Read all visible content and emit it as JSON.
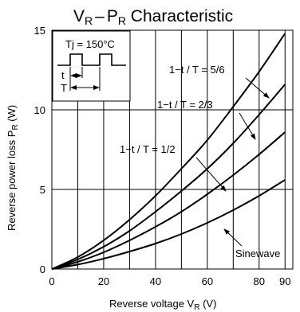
{
  "title": {
    "a": "V",
    "a_sub": "R",
    "dash": "–",
    "b": "P",
    "b_sub": "R",
    "rest": " Characteristic"
  },
  "xlabel": {
    "text": "Reverse voltage  V",
    "sub": "R",
    "unit": " (V)"
  },
  "ylabel": {
    "text": "Reverse power loss  P",
    "sub": "R",
    "unit": " (W)"
  },
  "inset": {
    "tj_label": "Tj = 150°C",
    "t_label": "t",
    "T_label": "T"
  },
  "chart_data": {
    "type": "line",
    "title": "VR – PR Characteristic",
    "xlabel": "Reverse voltage VR (V)",
    "ylabel": "Reverse power loss PR (W)",
    "xlim": [
      0,
      93
    ],
    "ylim": [
      0,
      15
    ],
    "x_ticks": [
      "0",
      "20",
      "40",
      "60",
      "80",
      "90"
    ],
    "y_ticks": [
      "0",
      "5",
      "10",
      "15"
    ],
    "grid": true,
    "series": [
      {
        "name": "1−t / T = 5/6",
        "x": [
          0,
          10,
          20,
          30,
          40,
          50,
          60,
          70,
          80,
          90
        ],
        "y": [
          0,
          0.75,
          1.8,
          3.1,
          4.6,
          6.3,
          8.1,
          10.2,
          12.4,
          14.8
        ]
      },
      {
        "name": "1−t / T = 2/3",
        "x": [
          0,
          10,
          20,
          30,
          40,
          50,
          60,
          70,
          80,
          90
        ],
        "y": [
          0,
          0.6,
          1.4,
          2.4,
          3.6,
          4.9,
          6.3,
          7.9,
          9.7,
          11.6
        ]
      },
      {
        "name": "1−t / T = 1/2",
        "x": [
          0,
          10,
          20,
          30,
          40,
          50,
          60,
          70,
          80,
          90
        ],
        "y": [
          0,
          0.45,
          1.05,
          1.8,
          2.65,
          3.6,
          4.7,
          5.9,
          7.2,
          8.6
        ]
      },
      {
        "name": "Sinewave",
        "x": [
          0,
          10,
          20,
          30,
          40,
          50,
          60,
          70,
          80,
          90
        ],
        "y": [
          0,
          0.28,
          0.65,
          1.1,
          1.6,
          2.2,
          2.9,
          3.7,
          4.6,
          5.6
        ]
      }
    ],
    "annotations": [
      "1−t / T = 5/6",
      "1−t / T = 2/3",
      "1−t / T = 1/2",
      "Sinewave"
    ]
  },
  "colors": {
    "line": "#000000",
    "background": "#ffffff"
  }
}
